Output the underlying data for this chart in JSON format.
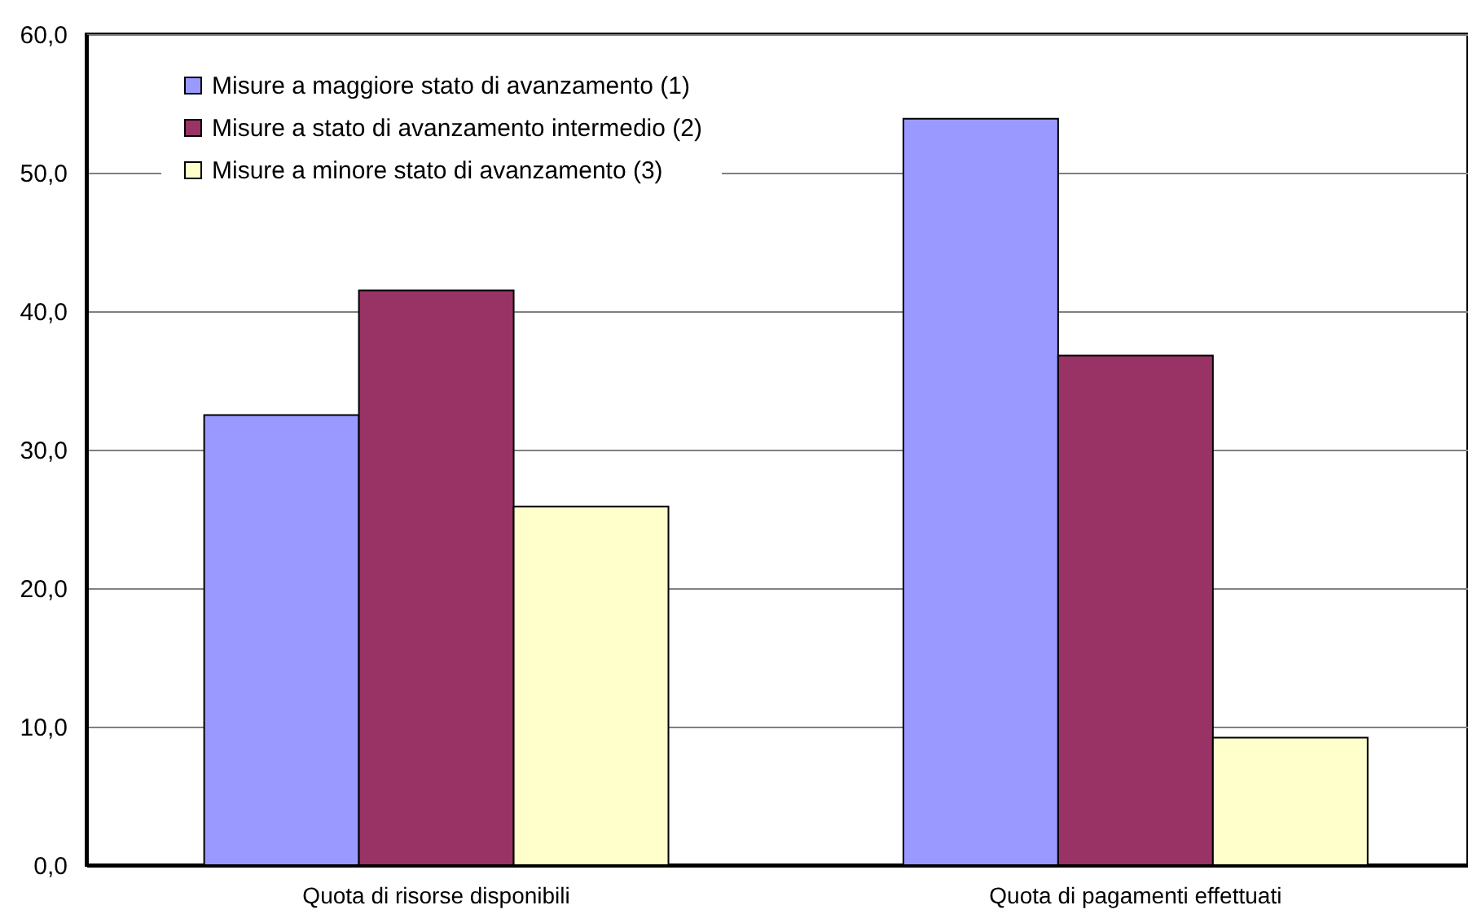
{
  "chart_data": {
    "type": "bar",
    "categories": [
      "Quota di risorse disponibili",
      "Quota di pagamenti effettuati"
    ],
    "series": [
      {
        "name": "Misure a maggiore stato di avanzamento (1)",
        "color": "#9999ff",
        "values": [
          32.5,
          53.9
        ]
      },
      {
        "name": "Misure a stato di avanzamento intermedio (2)",
        "color": "#993366",
        "values": [
          41.5,
          36.8
        ]
      },
      {
        "name": "Misure a minore stato di avanzamento (3)",
        "color": "#ffffcc",
        "values": [
          25.9,
          9.2
        ]
      }
    ],
    "ylim": [
      0,
      60
    ],
    "yticks": [
      {
        "value": 0,
        "label": "0,0"
      },
      {
        "value": 10,
        "label": "10,0"
      },
      {
        "value": 20,
        "label": "20,0"
      },
      {
        "value": 30,
        "label": "30,0"
      },
      {
        "value": 40,
        "label": "40,0"
      },
      {
        "value": 50,
        "label": "50,0"
      },
      {
        "value": 60,
        "label": "60,0"
      }
    ],
    "grid": "y",
    "legend": "top left"
  }
}
